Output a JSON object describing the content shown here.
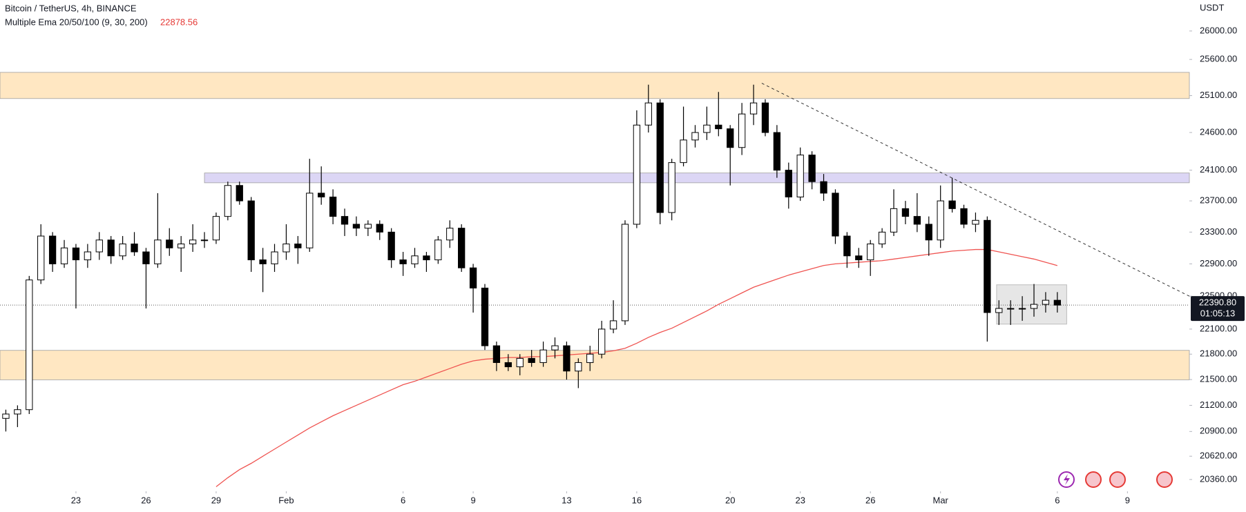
{
  "chart_data": {
    "type": "candlestick",
    "title": "Bitcoin / TetherUS, 4h, BINANCE",
    "indicator": "Multiple Ema 20/50/100 (9, 30, 200)",
    "currency": "USDT",
    "log_scale": true,
    "grid": false,
    "up_color": "#ffffff",
    "down_color": "#000000",
    "ylim": [
      20237,
      26443
    ],
    "yticks": [
      {
        "value": 26000,
        "label": "26000.00"
      },
      {
        "value": 25600,
        "label": "25600.00"
      },
      {
        "value": 25100,
        "label": "25100.00"
      },
      {
        "value": 24600,
        "label": "24600.00"
      },
      {
        "value": 24100,
        "label": "24100.00"
      },
      {
        "value": 23700,
        "label": "23700.00"
      },
      {
        "value": 23300,
        "label": "23300.00"
      },
      {
        "value": 22900,
        "label": "22900.00"
      },
      {
        "value": 22500,
        "label": "22500.00"
      },
      {
        "value": 22100,
        "label": "22100.00"
      },
      {
        "value": 21800,
        "label": "21800.00"
      },
      {
        "value": 21500,
        "label": "21500.00"
      },
      {
        "value": 21200,
        "label": "21200.00"
      },
      {
        "value": 20900,
        "label": "20900.00"
      },
      {
        "value": 20620,
        "label": "20620.00"
      },
      {
        "value": 20360,
        "label": "20360.00"
      }
    ],
    "xlim": [
      -0.5,
      101.3
    ],
    "xticks": [
      {
        "value": 6,
        "label": "23"
      },
      {
        "value": 12,
        "label": "26"
      },
      {
        "value": 18,
        "label": "29"
      },
      {
        "value": 24,
        "label": "Feb"
      },
      {
        "value": 34,
        "label": "6"
      },
      {
        "value": 40,
        "label": "9"
      },
      {
        "value": 48,
        "label": "13"
      },
      {
        "value": 54,
        "label": "16"
      },
      {
        "value": 62,
        "label": "20"
      },
      {
        "value": 68,
        "label": "23"
      },
      {
        "value": 74,
        "label": "26"
      },
      {
        "value": 80,
        "label": "Mar"
      },
      {
        "value": 90,
        "label": "6"
      },
      {
        "value": 96,
        "label": "9"
      }
    ],
    "open": [
      21050,
      21100,
      21150,
      22700,
      23250,
      22900,
      23100,
      22950,
      23050,
      23200,
      23000,
      23150,
      23050,
      22900,
      23200,
      23100,
      23150,
      23200,
      23200,
      23500,
      23900,
      23700,
      22950,
      22900,
      23050,
      23150,
      23100,
      23800,
      23750,
      23500,
      23400,
      23350,
      23400,
      23300,
      22950,
      22900,
      23000,
      22950,
      23200,
      23350,
      22850,
      22600,
      21900,
      21700,
      21650,
      21750,
      21700,
      21850,
      21900,
      21600,
      21700,
      21800,
      22100,
      22200,
      23400,
      24700,
      25000,
      23550,
      24200,
      24500,
      24600,
      24700,
      24650,
      24400,
      24850,
      25000,
      24600,
      24100,
      23750,
      24300,
      23950,
      23800,
      23250,
      23000,
      22950,
      23150,
      23300,
      23600,
      23500,
      23400,
      23200,
      23700,
      23600,
      23400,
      23450,
      22300,
      22350,
      22350,
      22350,
      22400,
      22450
    ],
    "high": [
      21150,
      21200,
      22750,
      23400,
      23300,
      23200,
      23150,
      23150,
      23300,
      23250,
      23250,
      23300,
      23100,
      23800,
      23350,
      23250,
      23400,
      23300,
      23550,
      23950,
      23950,
      23750,
      23100,
      23150,
      23400,
      23250,
      24250,
      24150,
      23850,
      23600,
      23500,
      23450,
      23450,
      23350,
      23050,
      23100,
      23050,
      23250,
      23450,
      23400,
      22900,
      22650,
      21950,
      21800,
      21800,
      21850,
      21950,
      22000,
      21950,
      21750,
      21900,
      22200,
      22450,
      23450,
      24900,
      25250,
      25050,
      24250,
      24950,
      24700,
      24950,
      25150,
      24700,
      25000,
      25250,
      25050,
      24700,
      24200,
      24400,
      24350,
      24050,
      23850,
      23300,
      23100,
      23200,
      23350,
      23850,
      23700,
      23800,
      23500,
      23900,
      24000,
      23650,
      23550,
      23500,
      22450,
      22450,
      22500,
      22650,
      22550,
      22550
    ],
    "low": [
      20900,
      20950,
      21100,
      22650,
      22800,
      22850,
      22350,
      22850,
      22950,
      22900,
      22950,
      23000,
      22350,
      22850,
      23000,
      22800,
      23050,
      23100,
      23150,
      23450,
      23650,
      22800,
      22550,
      22800,
      22950,
      22900,
      23050,
      23650,
      23400,
      23250,
      23250,
      23250,
      23200,
      22850,
      22750,
      22850,
      22800,
      22900,
      23100,
      22800,
      22300,
      21850,
      21600,
      21600,
      21550,
      21650,
      21650,
      21750,
      21500,
      21400,
      21600,
      21750,
      22050,
      22150,
      23350,
      24600,
      23400,
      23450,
      24150,
      24400,
      24500,
      24550,
      23900,
      24300,
      24700,
      24550,
      24000,
      23600,
      23700,
      23850,
      23700,
      23150,
      22850,
      22850,
      22750,
      23100,
      23250,
      23400,
      23300,
      23000,
      23100,
      23550,
      23350,
      23300,
      21950,
      22150,
      22150,
      22200,
      22250,
      22300,
      22300
    ],
    "close": [
      21100,
      21150,
      22700,
      23250,
      22900,
      23100,
      22950,
      23050,
      23200,
      23000,
      23150,
      23050,
      22900,
      23200,
      23100,
      23150,
      23200,
      23200,
      23500,
      23900,
      23700,
      22950,
      22900,
      23050,
      23150,
      23100,
      23800,
      23750,
      23500,
      23400,
      23350,
      23400,
      23300,
      22950,
      22900,
      23000,
      22950,
      23200,
      23350,
      22850,
      22600,
      21900,
      21700,
      21650,
      21750,
      21700,
      21850,
      21900,
      21600,
      21700,
      21800,
      22100,
      22200,
      23400,
      24700,
      25000,
      23550,
      24200,
      24500,
      24600,
      24700,
      24650,
      24400,
      24850,
      25000,
      24600,
      24100,
      23750,
      24300,
      23950,
      23800,
      23250,
      23000,
      22950,
      23150,
      23300,
      23600,
      23500,
      23400,
      23200,
      23700,
      23600,
      23400,
      23450,
      22300,
      22350,
      22350,
      22350,
      22400,
      22450,
      22390.8
    ],
    "ema": {
      "color": "#ef5350",
      "values": [
        null,
        null,
        null,
        null,
        null,
        null,
        null,
        null,
        null,
        null,
        null,
        null,
        null,
        null,
        null,
        null,
        null,
        null,
        20280,
        20380,
        20470,
        20540,
        20620,
        20700,
        20780,
        20860,
        20940,
        21010,
        21080,
        21140,
        21200,
        21260,
        21320,
        21380,
        21440,
        21480,
        21530,
        21580,
        21630,
        21680,
        21720,
        21740,
        21750,
        21760,
        21760,
        21770,
        21770,
        21780,
        21790,
        21800,
        21810,
        21820,
        21840,
        21870,
        21930,
        22000,
        22060,
        22110,
        22180,
        22250,
        22320,
        22400,
        22470,
        22540,
        22610,
        22660,
        22710,
        22760,
        22800,
        22840,
        22880,
        22900,
        22910,
        22920,
        22930,
        22940,
        22960,
        22980,
        23000,
        23020,
        23040,
        23060,
        23070,
        23080,
        23080,
        23050,
        23020,
        22990,
        22960,
        22920,
        22878.56
      ]
    },
    "last_price": {
      "value": 22390.8,
      "label": "22390.80",
      "countdown": "01:05:13"
    },
    "zones": [
      {
        "low": 25060,
        "high": 25420,
        "x_start": -0.5,
        "color": "#ffe7c2"
      },
      {
        "low": 23935,
        "high": 24063,
        "x_start": 17.0,
        "color": "#dcd6f5"
      },
      {
        "low": 21497,
        "high": 21845,
        "x_start": -0.5,
        "color": "#ffe7c2"
      }
    ],
    "range_box": {
      "x": [
        84.8,
        90.8
      ],
      "y": [
        22160,
        22640
      ],
      "color": "#e6e6e6"
    },
    "trendline": {
      "x": [
        64.7,
        101.3
      ],
      "y": [
        25270,
        22500
      ]
    }
  }
}
